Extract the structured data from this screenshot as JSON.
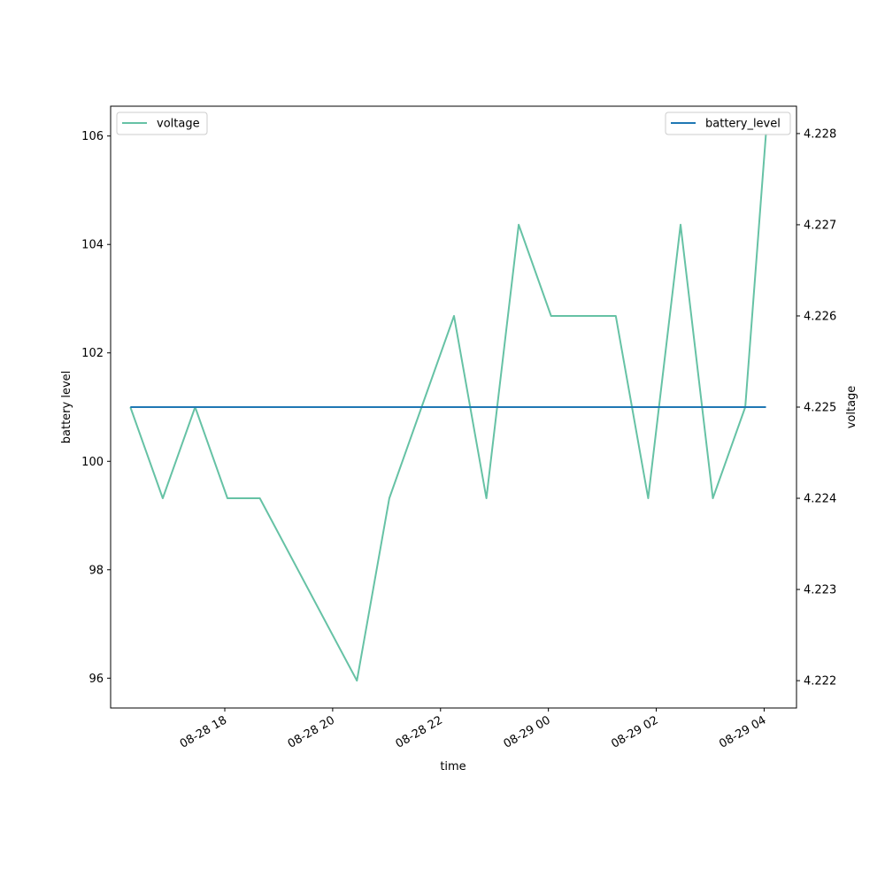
{
  "chart_data": {
    "type": "line",
    "title": "",
    "xlabel": "time",
    "ylabel_left": "battery level",
    "ylabel_right": "voltage",
    "x_ticks": [
      {
        "label": "08-28 18",
        "t": "2024-08-28T18:00"
      },
      {
        "label": "08-28 20",
        "t": "2024-08-28T20:00"
      },
      {
        "label": "08-28 22",
        "t": "2024-08-28T22:00"
      },
      {
        "label": "08-29 00",
        "t": "2024-08-29T00:00"
      },
      {
        "label": "08-29 02",
        "t": "2024-08-29T02:00"
      },
      {
        "label": "08-29 04",
        "t": "2024-08-29T04:00"
      }
    ],
    "xlim": [
      "2024-08-28T15:53",
      "2024-08-29T04:36"
    ],
    "ylim_left": [
      95.45,
      106.55
    ],
    "ylim_right": [
      4.2217,
      4.2283
    ],
    "yticks_left": [
      96,
      98,
      100,
      102,
      104,
      106
    ],
    "yticks_right": [
      "4.222",
      "4.223",
      "4.224",
      "4.225",
      "4.226",
      "4.227",
      "4.228"
    ],
    "series": [
      {
        "name": "battery_level",
        "axis": "left",
        "color": "#1f77b4",
        "x": [
          "2024-08-28T16:15",
          "2024-08-28T16:51",
          "2024-08-28T17:27",
          "2024-08-28T18:03",
          "2024-08-28T18:39",
          "2024-08-28T19:15",
          "2024-08-28T19:51",
          "2024-08-28T20:27",
          "2024-08-28T21:03",
          "2024-08-28T21:39",
          "2024-08-28T22:15",
          "2024-08-28T22:51",
          "2024-08-28T23:27",
          "2024-08-29T00:03",
          "2024-08-29T00:39",
          "2024-08-29T01:15",
          "2024-08-29T01:51",
          "2024-08-29T02:27",
          "2024-08-29T03:03",
          "2024-08-29T03:39",
          "2024-08-29T04:02"
        ],
        "values": [
          101,
          101,
          101,
          101,
          101,
          101,
          101,
          101,
          101,
          101,
          101,
          101,
          101,
          101,
          101,
          101,
          101,
          101,
          101,
          101,
          101
        ]
      },
      {
        "name": "voltage",
        "axis": "right",
        "color": "#66c2a5",
        "x": [
          "2024-08-28T16:15",
          "2024-08-28T16:51",
          "2024-08-28T17:27",
          "2024-08-28T18:03",
          "2024-08-28T18:39",
          "2024-08-28T20:27",
          "2024-08-28T21:03",
          "2024-08-28T21:39",
          "2024-08-28T22:15",
          "2024-08-28T22:51",
          "2024-08-28T23:27",
          "2024-08-29T00:03",
          "2024-08-29T01:15",
          "2024-08-29T01:51",
          "2024-08-29T02:27",
          "2024-08-29T03:03",
          "2024-08-29T03:39",
          "2024-08-29T04:02"
        ],
        "values": [
          4.225,
          4.224,
          4.225,
          4.224,
          4.224,
          4.222,
          4.224,
          4.225,
          4.226,
          4.224,
          4.227,
          4.226,
          4.226,
          4.224,
          4.227,
          4.224,
          4.225,
          4.228
        ]
      }
    ],
    "legends": [
      {
        "label": "voltage",
        "placement": "upper-left",
        "color": "#66c2a5"
      },
      {
        "label": "battery_level",
        "placement": "upper-right",
        "color": "#1f77b4"
      }
    ],
    "grid": false
  }
}
